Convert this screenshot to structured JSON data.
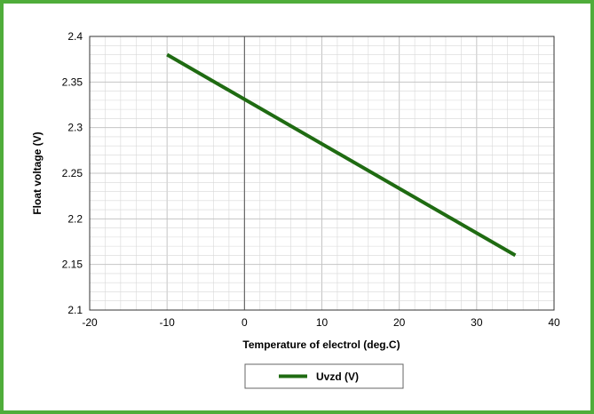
{
  "chart_data": {
    "type": "line",
    "title": "",
    "xlabel": "Temperature of electrol (deg.C)",
    "ylabel": "Float voltage (V)",
    "xlim": [
      -20,
      40
    ],
    "ylim": [
      2.1,
      2.4
    ],
    "x_ticks": [
      "-20",
      "-10",
      "0",
      "10",
      "20",
      "30",
      "40"
    ],
    "y_ticks": [
      "2.1",
      "2.15",
      "2.2",
      "2.25",
      "2.3",
      "2.35",
      "2.4"
    ],
    "grid": true,
    "legend_position": "bottom-center",
    "series": [
      {
        "name": "Uvzd (V)",
        "color": "#1f6b12",
        "x": [
          -10,
          35
        ],
        "y": [
          2.38,
          2.16
        ]
      }
    ]
  },
  "colors": {
    "frame": "#4fad3a",
    "grid": "#d8d8d8",
    "zero_line": "#555555"
  }
}
